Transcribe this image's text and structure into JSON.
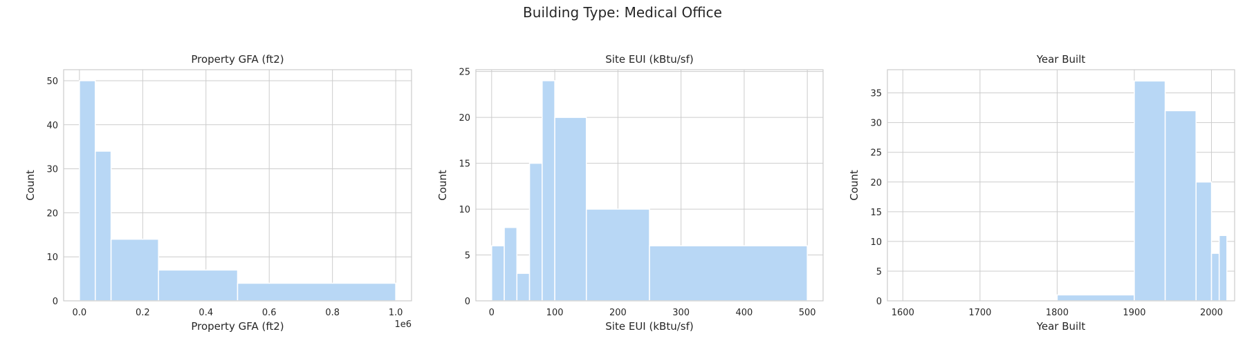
{
  "figure": {
    "suptitle": "Building Type: Medical Office"
  },
  "chart_data": [
    {
      "type": "bar",
      "subtype": "histogram",
      "title": "Property GFA (ft2)",
      "xlabel": "Property GFA (ft2)",
      "ylabel": "Count",
      "x_offset_label": "1e6",
      "xlim": [
        -0.05,
        1.05
      ],
      "ylim": [
        0,
        52.5
      ],
      "xticks": [
        0,
        0.2,
        0.4,
        0.6,
        0.8,
        1
      ],
      "xtick_labels": [
        "0.0",
        "0.2",
        "0.4",
        "0.6",
        "0.8",
        "1.0"
      ],
      "yticks": [
        0,
        10,
        20,
        30,
        40,
        50
      ],
      "ytick_labels": [
        "0",
        "10",
        "20",
        "30",
        "40",
        "50"
      ],
      "bins": [
        [
          0,
          0.05
        ],
        [
          0.05,
          0.1
        ],
        [
          0.1,
          0.25
        ],
        [
          0.25,
          0.5
        ],
        [
          0.5,
          1.0
        ]
      ],
      "values": [
        50,
        34,
        14,
        7,
        4
      ],
      "grid": true
    },
    {
      "type": "bar",
      "subtype": "histogram",
      "title": "Site EUI (kBtu/sf)",
      "xlabel": "Site EUI (kBtu/sf)",
      "ylabel": "Count",
      "xlim": [
        -25,
        525
      ],
      "ylim": [
        0,
        25.2
      ],
      "xticks": [
        0,
        100,
        200,
        300,
        400,
        500
      ],
      "xtick_labels": [
        "0",
        "100",
        "200",
        "300",
        "400",
        "500"
      ],
      "yticks": [
        0,
        5,
        10,
        15,
        20,
        25
      ],
      "ytick_labels": [
        "0",
        "5",
        "10",
        "15",
        "20",
        "25"
      ],
      "bins": [
        [
          0,
          20
        ],
        [
          20,
          40
        ],
        [
          40,
          60
        ],
        [
          60,
          80
        ],
        [
          80,
          100
        ],
        [
          100,
          150
        ],
        [
          150,
          250
        ],
        [
          250,
          500
        ]
      ],
      "values": [
        6,
        8,
        3,
        15,
        24,
        20,
        10,
        6
      ],
      "grid": true
    },
    {
      "type": "bar",
      "subtype": "histogram",
      "title": "Year Built",
      "xlabel": "Year Built",
      "ylabel": "Count",
      "xlim": [
        1580,
        2030
      ],
      "ylim": [
        0,
        38.9
      ],
      "xticks": [
        1600,
        1700,
        1800,
        1900,
        2000
      ],
      "xtick_labels": [
        "1600",
        "1700",
        "1800",
        "1900",
        "2000"
      ],
      "yticks": [
        0,
        5,
        10,
        15,
        20,
        25,
        30,
        35
      ],
      "ytick_labels": [
        "0",
        "5",
        "10",
        "15",
        "20",
        "25",
        "30",
        "35"
      ],
      "bins": [
        [
          1600,
          1800
        ],
        [
          1800,
          1900
        ],
        [
          1900,
          1940
        ],
        [
          1940,
          1980
        ],
        [
          1980,
          2000
        ],
        [
          2000,
          2010
        ],
        [
          2010,
          2020
        ]
      ],
      "values": [
        0,
        1,
        37,
        32,
        20,
        8,
        11
      ],
      "grid": true
    }
  ]
}
